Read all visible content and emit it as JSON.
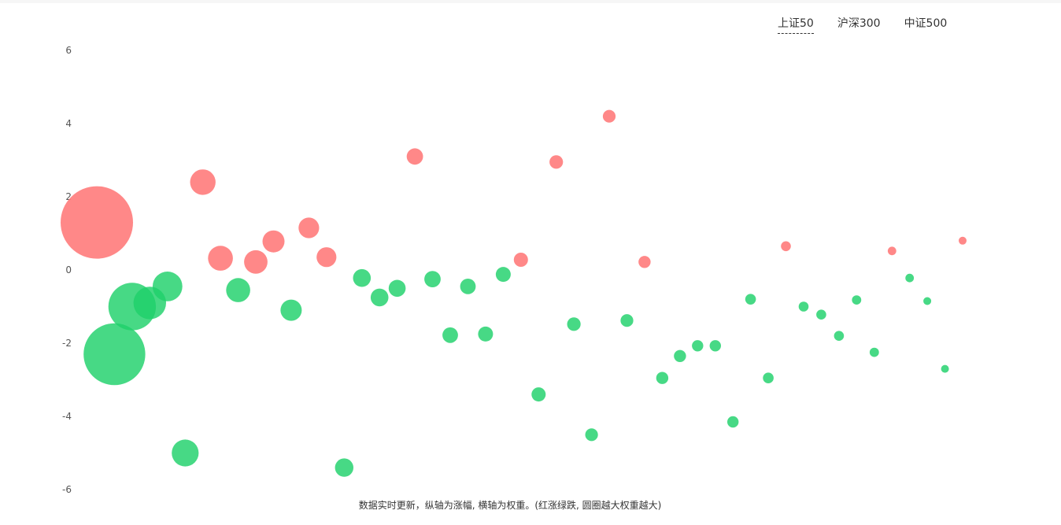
{
  "tabs": [
    {
      "label": "上证50",
      "active": true
    },
    {
      "label": "沪深300",
      "active": false
    },
    {
      "label": "中证500",
      "active": false
    }
  ],
  "caption": "数据实时更新，纵轴为涨幅, 横轴为权重。(红涨绿跌, 圆圈越大权重越大)",
  "colors": {
    "up": "#ff7b7b",
    "down": "#1ed16a"
  },
  "chart_data": {
    "type": "scatter",
    "title": "",
    "xlabel": "",
    "ylabel": "",
    "ylim": [
      -6,
      6
    ],
    "yticks": [
      "6",
      "4",
      "2",
      "0",
      "-2",
      "-4",
      "-6"
    ],
    "grid": false,
    "legend": "none",
    "note": "bubble size = weight; red = up, green = down",
    "points": [
      {
        "rank": 1,
        "change": 1.3,
        "weight": 10.2
      },
      {
        "rank": 2,
        "change": -2.3,
        "weight": 8.7
      },
      {
        "rank": 3,
        "change": -1.0,
        "weight": 6.7
      },
      {
        "rank": 4,
        "change": -0.9,
        "weight": 4.6
      },
      {
        "rank": 5,
        "change": -0.45,
        "weight": 4.2
      },
      {
        "rank": 6,
        "change": -5.0,
        "weight": 3.8
      },
      {
        "rank": 7,
        "change": 2.4,
        "weight": 3.6
      },
      {
        "rank": 8,
        "change": 0.32,
        "weight": 3.5
      },
      {
        "rank": 9,
        "change": -0.55,
        "weight": 3.4
      },
      {
        "rank": 10,
        "change": 0.22,
        "weight": 3.3
      },
      {
        "rank": 11,
        "change": 0.78,
        "weight": 3.1
      },
      {
        "rank": 12,
        "change": -1.1,
        "weight": 3.0
      },
      {
        "rank": 13,
        "change": 1.15,
        "weight": 2.9
      },
      {
        "rank": 14,
        "change": 0.35,
        "weight": 2.8
      },
      {
        "rank": 15,
        "change": -5.4,
        "weight": 2.6
      },
      {
        "rank": 16,
        "change": -0.22,
        "weight": 2.5
      },
      {
        "rank": 17,
        "change": -0.75,
        "weight": 2.5
      },
      {
        "rank": 18,
        "change": -0.5,
        "weight": 2.4
      },
      {
        "rank": 19,
        "change": 3.1,
        "weight": 2.3
      },
      {
        "rank": 20,
        "change": -0.25,
        "weight": 2.3
      },
      {
        "rank": 21,
        "change": -1.78,
        "weight": 2.2
      },
      {
        "rank": 22,
        "change": -0.45,
        "weight": 2.2
      },
      {
        "rank": 23,
        "change": -1.75,
        "weight": 2.1
      },
      {
        "rank": 24,
        "change": -0.12,
        "weight": 2.1
      },
      {
        "rank": 25,
        "change": 0.28,
        "weight": 2.0
      },
      {
        "rank": 26,
        "change": -3.4,
        "weight": 2.0
      },
      {
        "rank": 27,
        "change": 2.95,
        "weight": 1.9
      },
      {
        "rank": 28,
        "change": -1.48,
        "weight": 1.9
      },
      {
        "rank": 29,
        "change": -4.5,
        "weight": 1.8
      },
      {
        "rank": 30,
        "change": 4.2,
        "weight": 1.8
      },
      {
        "rank": 31,
        "change": -1.38,
        "weight": 1.8
      },
      {
        "rank": 32,
        "change": 0.22,
        "weight": 1.7
      },
      {
        "rank": 33,
        "change": -2.95,
        "weight": 1.7
      },
      {
        "rank": 34,
        "change": -2.35,
        "weight": 1.7
      },
      {
        "rank": 35,
        "change": -2.07,
        "weight": 1.6
      },
      {
        "rank": 36,
        "change": -2.07,
        "weight": 1.6
      },
      {
        "rank": 37,
        "change": -4.15,
        "weight": 1.6
      },
      {
        "rank": 38,
        "change": -0.8,
        "weight": 1.5
      },
      {
        "rank": 39,
        "change": -2.95,
        "weight": 1.5
      },
      {
        "rank": 40,
        "change": 0.65,
        "weight": 1.4
      },
      {
        "rank": 41,
        "change": -1.0,
        "weight": 1.4
      },
      {
        "rank": 42,
        "change": -1.22,
        "weight": 1.4
      },
      {
        "rank": 43,
        "change": -1.8,
        "weight": 1.4
      },
      {
        "rank": 44,
        "change": -0.82,
        "weight": 1.3
      },
      {
        "rank": 45,
        "change": -2.25,
        "weight": 1.3
      },
      {
        "rank": 46,
        "change": 0.52,
        "weight": 1.2
      },
      {
        "rank": 47,
        "change": -0.22,
        "weight": 1.2
      },
      {
        "rank": 48,
        "change": -0.85,
        "weight": 1.1
      },
      {
        "rank": 49,
        "change": -2.7,
        "weight": 1.1
      },
      {
        "rank": 50,
        "change": 0.8,
        "weight": 1.1
      }
    ]
  }
}
